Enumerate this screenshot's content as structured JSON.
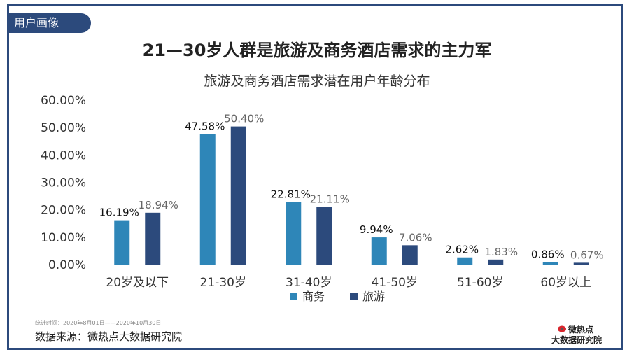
{
  "header": {
    "tag": "用户画像",
    "title": "21—30岁人群是旅游及商务酒店需求的主力军"
  },
  "footer": {
    "period": "统计时间：2020年8月01日——2020年10月30日",
    "source": "数据来源：微热点大数据研究院",
    "logo_line1": "微热点",
    "logo_line2": "大数据研究院"
  },
  "colors": {
    "frame": "#2c4a7c",
    "business": "#2e86b8",
    "travel": "#2c4a7c"
  },
  "chart_data": {
    "type": "bar",
    "title": "旅游及商务酒店需求潜在用户年龄分布",
    "xlabel": "",
    "ylabel": "",
    "categories": [
      "20岁及以下",
      "21-30岁",
      "31-40岁",
      "41-50岁",
      "51-60岁",
      "60岁以上"
    ],
    "series": [
      {
        "name": "商务",
        "values": [
          16.19,
          47.58,
          22.81,
          9.94,
          2.62,
          0.86
        ],
        "labels": [
          "16.19%",
          "47.58%",
          "22.81%",
          "9.94%",
          "2.62%",
          "0.86%"
        ]
      },
      {
        "name": "旅游",
        "values": [
          18.94,
          50.4,
          21.11,
          7.06,
          1.83,
          0.67
        ],
        "labels": [
          "18.94%",
          "50.40%",
          "21.11%",
          "7.06%",
          "1.83%",
          "0.67%"
        ]
      }
    ],
    "ylim": [
      0,
      60
    ],
    "yticks": [
      "0.00%",
      "10.00%",
      "20.00%",
      "30.00%",
      "40.00%",
      "50.00%",
      "60.00%"
    ],
    "grid": false,
    "legend": "bottom"
  }
}
